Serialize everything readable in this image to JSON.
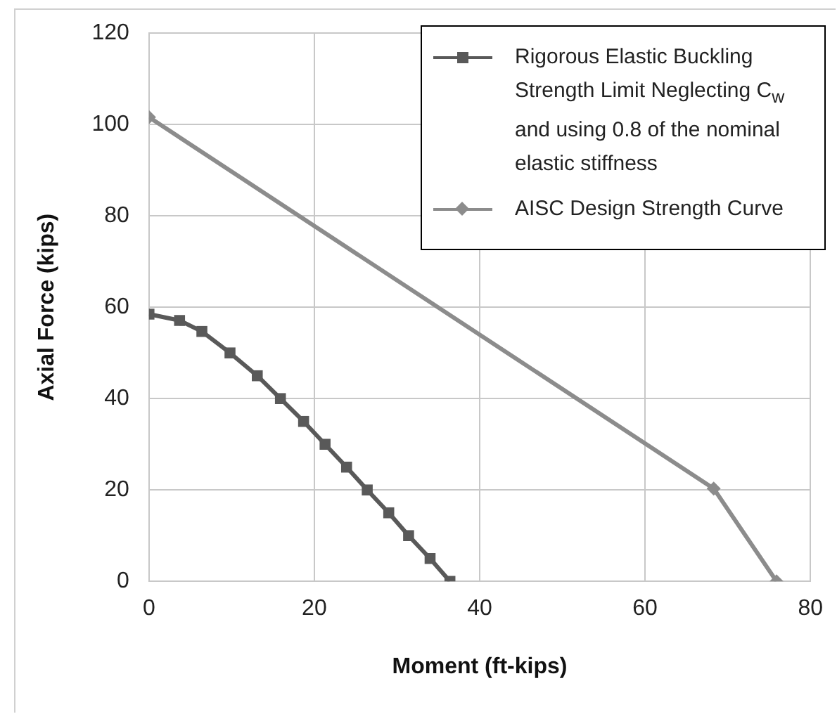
{
  "chart_data": {
    "type": "line",
    "xlabel": "Moment (ft-kips)",
    "ylabel": "Axial Force (kips)",
    "xlim": [
      0,
      80
    ],
    "xticks": [
      0,
      20,
      40,
      60,
      80
    ],
    "ylim": [
      0,
      120
    ],
    "yticks": [
      0,
      20,
      40,
      60,
      80,
      100,
      120
    ],
    "grid": true,
    "legend": "top right",
    "line_style": "solid",
    "series": [
      {
        "name": "Rigorous Elastic Buckling Strength Limit Neglecting C$_{w}$ and using 0.8 of the nominal elastic stiffness",
        "color": "#595959",
        "marker": "square",
        "x": [
          0,
          3.7,
          6.4,
          9.8,
          13.1,
          15.9,
          18.7,
          21.3,
          23.9,
          26.4,
          29.0,
          31.4,
          34.0,
          36.4
        ],
        "values": [
          58.5,
          57.1,
          54.7,
          50,
          45,
          40,
          35,
          30,
          25,
          20,
          15,
          10,
          5,
          0
        ]
      },
      {
        "name": "AISC Design Strength Curve",
        "color": "#8c8c8c",
        "marker": "diamond",
        "x": [
          0,
          68.3,
          75.9
        ],
        "values": [
          101.6,
          20.3,
          0
        ]
      }
    ]
  }
}
